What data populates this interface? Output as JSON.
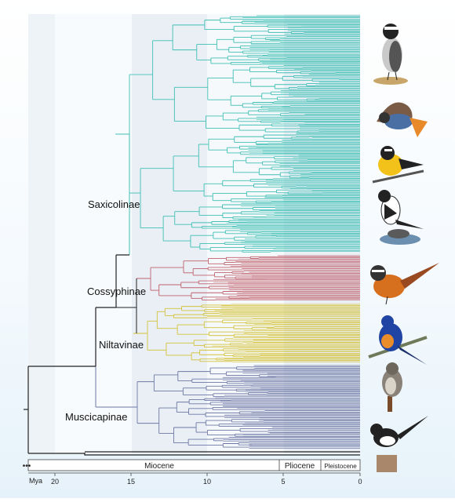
{
  "subfamilies": [
    {
      "name": "Saxicolinae",
      "color": "#3fbfb5"
    },
    {
      "name": "Cossyphinae",
      "color": "#c0616d"
    },
    {
      "name": "Niltavinae",
      "color": "#d4c23a"
    },
    {
      "name": "Muscicapinae",
      "color": "#6d78a6"
    }
  ],
  "timescale": {
    "unit": "Mya",
    "ticks": [
      "20",
      "15",
      "10",
      "5",
      "0"
    ],
    "epochs": [
      "Miocene",
      "Pliocene",
      "Pleistocene"
    ],
    "root_marker": "•••"
  },
  "bird_icons": [
    "wheatear-icon",
    "redstart-icon",
    "yellow-flycatcher-icon",
    "forktail-icon",
    "robin-chat-icon",
    "blue-flycatcher-icon",
    "brown-flycatcher-icon",
    "magpie-robin-icon"
  ],
  "colors": {
    "saxicolinae": "#3fbfb5",
    "cossyphinae": "#c0616d",
    "niltavinae": "#d4c23a",
    "muscicapinae": "#6d78a6",
    "backbone": "#222222",
    "band_light": "#eef3f7",
    "band_dark": "#e3eaf0"
  }
}
